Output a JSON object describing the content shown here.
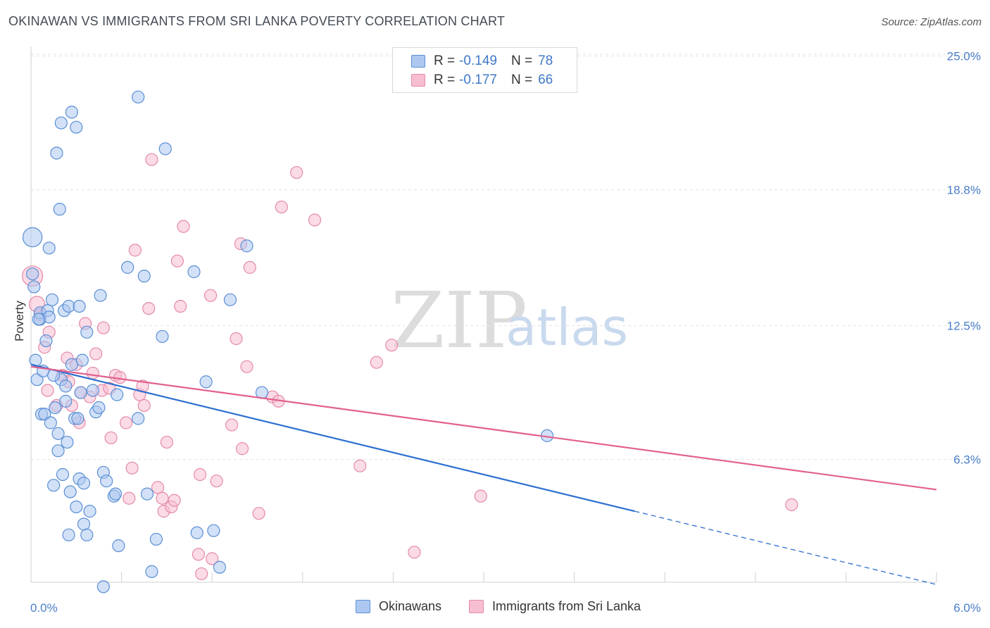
{
  "title": "OKINAWAN VS IMMIGRANTS FROM SRI LANKA POVERTY CORRELATION CHART",
  "source": "Source: ZipAtlas.com",
  "colors": {
    "blue_fill": "#adc8f0",
    "blue_stroke": "#5b8fd6",
    "blue_line": "#2c6fd1",
    "pink_fill": "#f7bed1",
    "pink_stroke": "#e48aaa",
    "pink_line": "#e2608e",
    "tick_text": "#4a7ec9"
  },
  "legend": {
    "rows": [
      {
        "r_label": "R =",
        "r_value": "-0.149",
        "n_label": "N =",
        "n_value": "78"
      },
      {
        "r_label": "R =",
        "r_value": "-0.177",
        "n_label": "N =",
        "n_value": "66"
      }
    ]
  },
  "bottom_legend": {
    "series1": "Okinawans",
    "series2": "Immigrants from Sri Lanka"
  },
  "watermark": {
    "zip": "ZIP",
    "atlas": "atlas"
  },
  "chart_data": {
    "type": "scatter",
    "title": "OKINAWAN VS IMMIGRANTS FROM SRI LANKA POVERTY CORRELATION CHART",
    "xlabel": "",
    "ylabel": "Poverty",
    "xlim": [
      0,
      6
    ],
    "ylim": [
      0,
      26
    ],
    "x_tick_labels": [
      {
        "value": 0,
        "label": "0.0%"
      },
      {
        "value": 6,
        "label": "6.0%"
      }
    ],
    "y_tick_labels": [
      {
        "value": 6.3,
        "label": "6.3%"
      },
      {
        "value": 12.5,
        "label": "12.5%"
      },
      {
        "value": 18.8,
        "label": "18.8%"
      },
      {
        "value": 25.0,
        "label": "25.0%"
      }
    ],
    "series": [
      {
        "name": "Okinawans",
        "R": -0.149,
        "N": 78,
        "trend": {
          "x0": 0,
          "y0": 10.7,
          "x1": 4.0,
          "y1": 3.9,
          "dashed_to_x": 6.0,
          "dashed_to_y": 0.5
        },
        "points": [
          [
            0.01,
            16.6,
            1.6
          ],
          [
            0.02,
            14.3,
            1
          ],
          [
            0.03,
            10.9,
            1
          ],
          [
            0.04,
            10.0,
            1
          ],
          [
            0.06,
            12.8,
            1
          ],
          [
            0.06,
            13.1,
            1
          ],
          [
            0.07,
            8.4,
            1
          ],
          [
            0.08,
            10.4,
            1
          ],
          [
            0.09,
            8.4,
            1
          ],
          [
            0.1,
            11.8,
            1
          ],
          [
            0.11,
            13.2,
            1
          ],
          [
            0.12,
            12.9,
            1
          ],
          [
            0.12,
            16.1,
            1
          ],
          [
            0.13,
            8.0,
            1
          ],
          [
            0.14,
            13.7,
            1
          ],
          [
            0.15,
            5.1,
            1
          ],
          [
            0.16,
            8.7,
            1
          ],
          [
            0.17,
            20.5,
            1
          ],
          [
            0.18,
            7.5,
            1
          ],
          [
            0.18,
            6.7,
            1
          ],
          [
            0.19,
            17.9,
            1
          ],
          [
            0.2,
            21.9,
            1
          ],
          [
            0.2,
            10.0,
            1
          ],
          [
            0.21,
            5.6,
            1
          ],
          [
            0.22,
            13.2,
            1
          ],
          [
            0.23,
            9.0,
            1
          ],
          [
            0.23,
            9.7,
            1
          ],
          [
            0.24,
            7.1,
            1
          ],
          [
            0.25,
            13.4,
            1
          ],
          [
            0.25,
            2.8,
            1
          ],
          [
            0.26,
            4.8,
            1
          ],
          [
            0.27,
            10.7,
            1
          ],
          [
            0.27,
            22.4,
            1
          ],
          [
            0.29,
            8.2,
            1
          ],
          [
            0.3,
            21.7,
            1
          ],
          [
            0.3,
            4.1,
            1
          ],
          [
            0.31,
            8.2,
            1
          ],
          [
            0.32,
            13.4,
            1
          ],
          [
            0.32,
            5.4,
            1
          ],
          [
            0.33,
            9.4,
            1
          ],
          [
            0.34,
            10.9,
            1
          ],
          [
            0.35,
            3.3,
            1
          ],
          [
            0.35,
            5.2,
            1
          ],
          [
            0.37,
            12.2,
            1
          ],
          [
            0.37,
            2.8,
            1
          ],
          [
            0.39,
            3.9,
            1
          ],
          [
            0.41,
            9.5,
            1
          ],
          [
            0.43,
            8.5,
            1
          ],
          [
            0.45,
            8.7,
            1
          ],
          [
            0.46,
            13.9,
            1
          ],
          [
            0.48,
            5.7,
            1
          ],
          [
            0.48,
            0.4,
            1
          ],
          [
            0.5,
            5.3,
            1
          ],
          [
            0.55,
            4.6,
            1
          ],
          [
            0.56,
            4.7,
            1
          ],
          [
            0.57,
            9.3,
            1
          ],
          [
            0.58,
            2.3,
            1
          ],
          [
            0.64,
            15.2,
            1
          ],
          [
            0.71,
            23.1,
            1
          ],
          [
            0.71,
            8.2,
            1
          ],
          [
            0.75,
            14.8,
            1
          ],
          [
            0.77,
            4.7,
            1
          ],
          [
            0.8,
            1.1,
            1
          ],
          [
            0.83,
            2.6,
            1
          ],
          [
            0.87,
            12.0,
            1
          ],
          [
            0.89,
            20.7,
            1
          ],
          [
            1.08,
            15.0,
            1
          ],
          [
            1.1,
            2.9,
            1
          ],
          [
            1.16,
            9.9,
            1
          ],
          [
            1.21,
            3.0,
            1
          ],
          [
            1.25,
            1.3,
            1
          ],
          [
            1.32,
            13.7,
            1
          ],
          [
            1.43,
            16.2,
            1
          ],
          [
            1.53,
            9.4,
            1
          ],
          [
            3.42,
            7.4,
            1
          ],
          [
            0.01,
            14.9,
            1
          ],
          [
            0.05,
            12.8,
            1
          ],
          [
            0.15,
            10.2,
            1
          ]
        ]
      },
      {
        "name": "Immigrants from Sri Lanka",
        "R": -0.177,
        "N": 66,
        "trend": {
          "x0": 0,
          "y0": 10.6,
          "x1": 6.0,
          "y1": 4.9
        },
        "points": [
          [
            0.01,
            14.8,
            1.7
          ],
          [
            0.04,
            13.5,
            1.3
          ],
          [
            0.06,
            13.0,
            1
          ],
          [
            0.09,
            11.5,
            1
          ],
          [
            0.11,
            9.5,
            1
          ],
          [
            0.17,
            8.8,
            1
          ],
          [
            0.21,
            10.2,
            1
          ],
          [
            0.24,
            11.0,
            1
          ],
          [
            0.25,
            9.9,
            1
          ],
          [
            0.27,
            8.8,
            1
          ],
          [
            0.3,
            10.7,
            1
          ],
          [
            0.32,
            8.0,
            1
          ],
          [
            0.33,
            9.4,
            1
          ],
          [
            0.36,
            12.6,
            1
          ],
          [
            0.39,
            9.2,
            1
          ],
          [
            0.41,
            10.3,
            1
          ],
          [
            0.43,
            11.2,
            1
          ],
          [
            0.47,
            9.5,
            1
          ],
          [
            0.48,
            12.4,
            1
          ],
          [
            0.52,
            9.6,
            1
          ],
          [
            0.53,
            7.3,
            1
          ],
          [
            0.56,
            10.2,
            1
          ],
          [
            0.59,
            10.1,
            1
          ],
          [
            0.63,
            8.0,
            1
          ],
          [
            0.65,
            4.5,
            1
          ],
          [
            0.67,
            5.9,
            1
          ],
          [
            0.69,
            16.0,
            1
          ],
          [
            0.72,
            9.3,
            1
          ],
          [
            0.74,
            9.7,
            1
          ],
          [
            0.75,
            8.8,
            1
          ],
          [
            0.78,
            13.3,
            1
          ],
          [
            0.8,
            20.2,
            1
          ],
          [
            0.84,
            5.0,
            1
          ],
          [
            0.87,
            4.5,
            1
          ],
          [
            0.88,
            3.9,
            1
          ],
          [
            0.9,
            7.1,
            1
          ],
          [
            0.93,
            4.1,
            1
          ],
          [
            0.95,
            4.4,
            1
          ],
          [
            0.97,
            15.5,
            1
          ],
          [
            0.99,
            13.4,
            1
          ],
          [
            1.01,
            17.1,
            1
          ],
          [
            1.11,
            1.9,
            1
          ],
          [
            1.12,
            5.6,
            1
          ],
          [
            1.13,
            1.0,
            1
          ],
          [
            1.19,
            13.9,
            1
          ],
          [
            1.2,
            1.7,
            1
          ],
          [
            1.23,
            5.3,
            1
          ],
          [
            1.33,
            7.9,
            1
          ],
          [
            1.36,
            11.9,
            1
          ],
          [
            1.39,
            16.3,
            1
          ],
          [
            1.4,
            6.8,
            1
          ],
          [
            1.43,
            10.6,
            1
          ],
          [
            1.45,
            15.2,
            1
          ],
          [
            1.51,
            3.8,
            1
          ],
          [
            1.6,
            9.2,
            1
          ],
          [
            1.64,
            9.0,
            1
          ],
          [
            1.66,
            18.0,
            1
          ],
          [
            1.76,
            19.6,
            1
          ],
          [
            1.88,
            17.4,
            1
          ],
          [
            2.18,
            6.0,
            1
          ],
          [
            2.29,
            10.8,
            1
          ],
          [
            2.39,
            11.6,
            1
          ],
          [
            2.54,
            2.0,
            1
          ],
          [
            2.98,
            4.6,
            1
          ],
          [
            5.04,
            4.2,
            1
          ],
          [
            0.12,
            12.2,
            1
          ]
        ]
      }
    ]
  }
}
